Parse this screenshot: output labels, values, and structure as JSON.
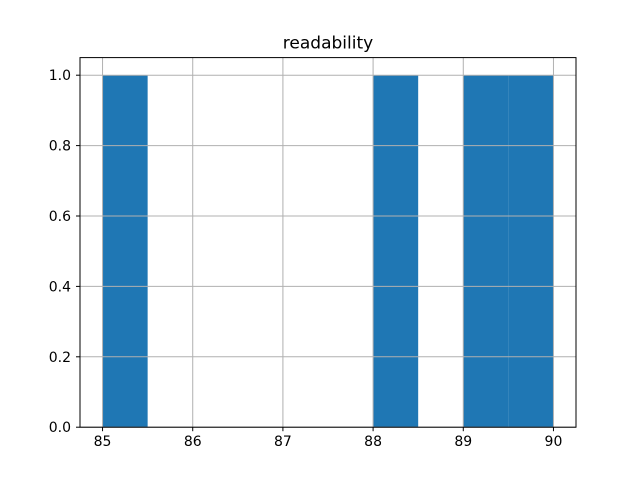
{
  "chart_data": {
    "type": "bar",
    "subtype": "histogram",
    "title": "readability",
    "bin_edges": [
      85.0,
      85.5,
      86.0,
      86.5,
      87.0,
      87.5,
      88.0,
      88.5,
      89.0,
      89.5,
      90.0
    ],
    "counts": [
      1,
      0,
      0,
      0,
      0,
      0,
      1,
      0,
      1,
      1
    ],
    "xlim": [
      84.75,
      90.25
    ],
    "ylim": [
      0,
      1.05
    ],
    "xticks": [
      85,
      86,
      87,
      88,
      89,
      90
    ],
    "xtick_labels": [
      "85",
      "86",
      "87",
      "88",
      "89",
      "90"
    ],
    "yticks": [
      0.0,
      0.2,
      0.4,
      0.6,
      0.8,
      1.0
    ],
    "ytick_labels": [
      "0.0",
      "0.2",
      "0.4",
      "0.6",
      "0.8",
      "1.0"
    ],
    "xlabel": "",
    "ylabel": "",
    "grid": true,
    "legend": null,
    "bar_color": "#1f77b4",
    "grid_color": "#b0b0b0",
    "spine_color": "#000000",
    "tick_color": "#000000",
    "background_color": "#ffffff"
  }
}
